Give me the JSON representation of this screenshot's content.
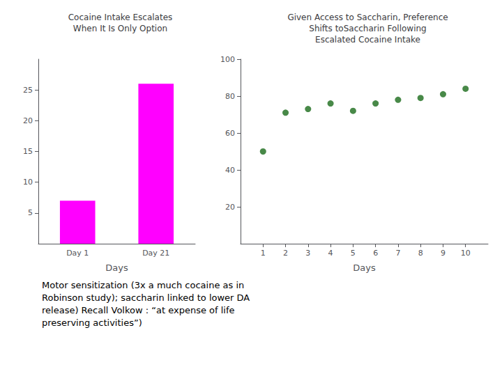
{
  "chart_data": [
    {
      "type": "bar",
      "title": "Cocaine Intake Escalates\nWhen It Is Only Option",
      "categories": [
        "Day 1",
        "Day 21"
      ],
      "values": [
        7,
        26
      ],
      "color": "#FF00FF",
      "xlabel": "Days",
      "ylim": [
        0,
        30
      ],
      "yticks": [
        5,
        10,
        15,
        20,
        25
      ],
      "grid": false,
      "annotations": [
        "Motor sensitization (3x a much cocaine as in\nRobinson study); saccharin linked to lower DA\nrelease) Recall Volkow : “at expense of life\npreserving activities”)"
      ]
    },
    {
      "type": "scatter",
      "title": "Given Access to Saccharin, Preference\nShifts toSaccharin Following\nEscalated Cocaine Intake",
      "x": [
        1,
        2,
        3,
        4,
        5,
        6,
        7,
        8,
        9,
        10
      ],
      "values": [
        50,
        71,
        73,
        76,
        72,
        76,
        78,
        79,
        81,
        84
      ],
      "color": "#1a6b1a",
      "xlabel": "Days",
      "xlim": [
        0,
        11
      ],
      "xticks": [
        1,
        2,
        3,
        4,
        5,
        6,
        7,
        8,
        9,
        10
      ],
      "ylim": [
        0,
        100
      ],
      "yticks": [
        20,
        40,
        60,
        80,
        100
      ],
      "grid": false
    }
  ]
}
